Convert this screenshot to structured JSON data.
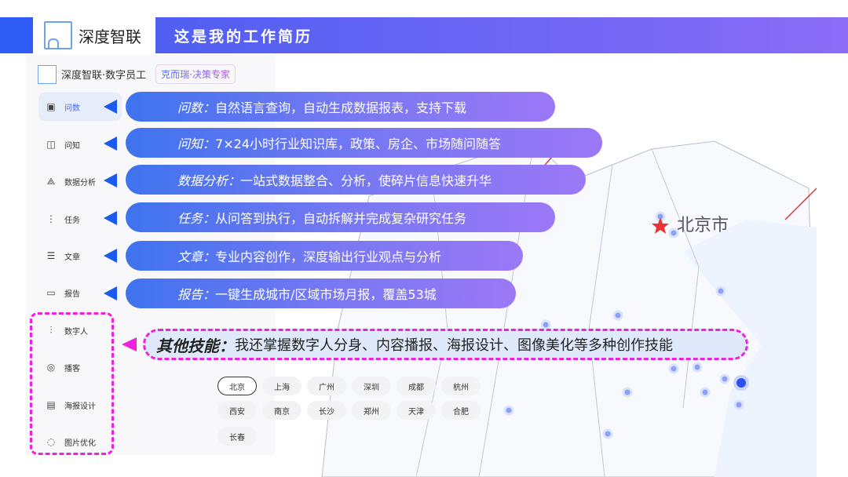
{
  "header": {
    "brand": "深度智联",
    "title": "这是我的工作简历"
  },
  "app": {
    "brand": "深度智联·数字员工",
    "badge": "克而瑞·决策专家"
  },
  "sidebar": {
    "items": [
      {
        "label": "问数",
        "icon": "chart-icon"
      },
      {
        "label": "问知",
        "icon": "book-icon"
      },
      {
        "label": "数据分析",
        "icon": "network-icon"
      },
      {
        "label": "任务",
        "icon": "tree-icon"
      },
      {
        "label": "文章",
        "icon": "document-icon"
      },
      {
        "label": "报告",
        "icon": "presentation-icon"
      },
      {
        "label": "数字人",
        "icon": "waveform-icon"
      },
      {
        "label": "播客",
        "icon": "podcast-icon"
      },
      {
        "label": "海报设计",
        "icon": "poster-icon"
      },
      {
        "label": "图片优化",
        "icon": "image-magic-icon"
      }
    ]
  },
  "callouts": [
    {
      "title": "问数：",
      "text": "自然语言查询，自动生成数据报表，支持下载"
    },
    {
      "title": "问知：",
      "text": "7×24小时行业知识库，政策、房企、市场随问随答"
    },
    {
      "title": "数据分析：",
      "text": "一站式数据整合、分析，使碎片信息快速升华"
    },
    {
      "title": "任务：",
      "text": "从问答到执行，自动拆解并完成复杂研究任务"
    },
    {
      "title": "文章：",
      "text": "专业内容创作，深度输出行业观点与分析"
    },
    {
      "title": "报告：",
      "text": "一键生成城市/区域市场月报，覆盖53城"
    }
  ],
  "other": {
    "title": "其他技能：",
    "text": "我还掌握数字人分身、内容播报、海报设计、图像美化等多种创作技能"
  },
  "cities": [
    "北京",
    "上海",
    "广州",
    "深圳",
    "成都",
    "杭州",
    "西安",
    "南京",
    "长沙",
    "郑州",
    "天津",
    "合肥",
    "长春"
  ],
  "map": {
    "label": "北京市"
  },
  "colors": {
    "accent": "#2f5cf5",
    "highlight": "#ee22dd"
  }
}
